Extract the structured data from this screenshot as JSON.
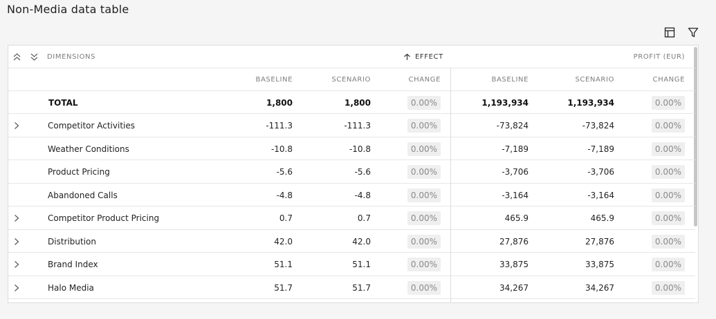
{
  "page": {
    "title": "Non-Media data table"
  },
  "toolbar": {
    "icons": [
      "table-columns-icon",
      "filter-icon"
    ]
  },
  "table": {
    "header_group": {
      "dimensions_label": "DIMENSIONS",
      "effect_label": "EFFECT",
      "profit_label": "PROFIT (EUR)"
    },
    "subheaders": {
      "effect_baseline": "BASELINE",
      "effect_scenario": "SCENARIO",
      "effect_change": "CHANGE",
      "profit_baseline": "BASELINE",
      "profit_scenario": "SCENARIO",
      "profit_change": "CHANGE"
    },
    "rows": [
      {
        "name": "TOTAL",
        "expandable": false,
        "bold": true,
        "e_base": "1,800",
        "e_scen": "1,800",
        "e_chg": "0.00%",
        "p_base": "1,193,934",
        "p_scen": "1,193,934",
        "p_chg": "0.00%"
      },
      {
        "name": "Competitor Activities",
        "expandable": true,
        "bold": false,
        "e_base": "-111.3",
        "e_scen": "-111.3",
        "e_chg": "0.00%",
        "p_base": "-73,824",
        "p_scen": "-73,824",
        "p_chg": "0.00%"
      },
      {
        "name": "Weather Conditions",
        "expandable": false,
        "bold": false,
        "e_base": "-10.8",
        "e_scen": "-10.8",
        "e_chg": "0.00%",
        "p_base": "-7,189",
        "p_scen": "-7,189",
        "p_chg": "0.00%"
      },
      {
        "name": "Product Pricing",
        "expandable": false,
        "bold": false,
        "e_base": "-5.6",
        "e_scen": "-5.6",
        "e_chg": "0.00%",
        "p_base": "-3,706",
        "p_scen": "-3,706",
        "p_chg": "0.00%"
      },
      {
        "name": "Abandoned Calls",
        "expandable": false,
        "bold": false,
        "e_base": "-4.8",
        "e_scen": "-4.8",
        "e_chg": "0.00%",
        "p_base": "-3,164",
        "p_scen": "-3,164",
        "p_chg": "0.00%"
      },
      {
        "name": "Competitor Product Pricing",
        "expandable": true,
        "bold": false,
        "e_base": "0.7",
        "e_scen": "0.7",
        "e_chg": "0.00%",
        "p_base": "465.9",
        "p_scen": "465.9",
        "p_chg": "0.00%"
      },
      {
        "name": "Distribution",
        "expandable": true,
        "bold": false,
        "e_base": "42.0",
        "e_scen": "42.0",
        "e_chg": "0.00%",
        "p_base": "27,876",
        "p_scen": "27,876",
        "p_chg": "0.00%"
      },
      {
        "name": "Brand Index",
        "expandable": true,
        "bold": false,
        "e_base": "51.1",
        "e_scen": "51.1",
        "e_chg": "0.00%",
        "p_base": "33,875",
        "p_scen": "33,875",
        "p_chg": "0.00%"
      },
      {
        "name": "Halo Media",
        "expandable": true,
        "bold": false,
        "e_base": "51.7",
        "e_scen": "51.7",
        "e_chg": "0.00%",
        "p_base": "34,267",
        "p_scen": "34,267",
        "p_chg": "0.00%"
      }
    ]
  }
}
